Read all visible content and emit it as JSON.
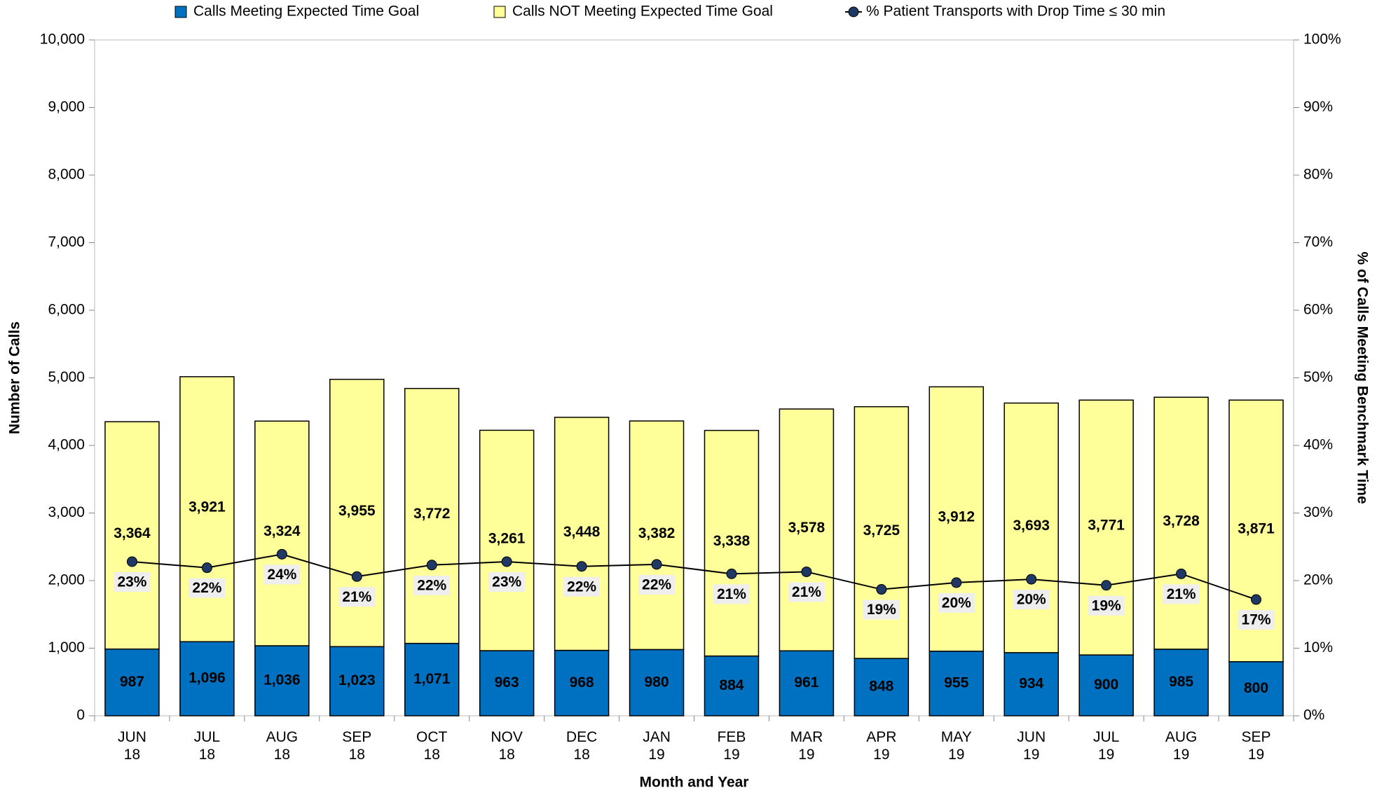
{
  "chart_data": {
    "type": "bar",
    "stacked": true,
    "x_label": "Month and Year",
    "y_label": "Number of Calls",
    "y2_label": "% of Calls Meeting Benchmark Time",
    "categories": [
      "JUN 18",
      "JUL 18",
      "AUG 18",
      "SEP 18",
      "OCT 18",
      "NOV 18",
      "DEC 18",
      "JAN 19",
      "FEB 19",
      "MAR 19",
      "APR 19",
      "MAY 19",
      "JUN 19",
      "JUL 19",
      "AUG 19",
      "SEP 19"
    ],
    "series": [
      {
        "name": "Calls Meeting Expected Time Goal",
        "color": "#0070c0",
        "values": [
          987,
          1096,
          1036,
          1023,
          1071,
          963,
          968,
          980,
          884,
          961,
          848,
          955,
          934,
          900,
          985,
          800
        ],
        "value_labels": [
          "987",
          "1,096",
          "1,036",
          "1,023",
          "1,071",
          "963",
          "968",
          "980",
          "884",
          "961",
          "848",
          "955",
          "934",
          "900",
          "985",
          "800"
        ]
      },
      {
        "name": "Calls NOT Meeting Expected Time Goal",
        "color": "#ffff99",
        "values": [
          3364,
          3921,
          3324,
          3955,
          3772,
          3261,
          3448,
          3382,
          3338,
          3578,
          3725,
          3912,
          3693,
          3771,
          3728,
          3871
        ],
        "value_labels": [
          "3,364",
          "3,921",
          "3,324",
          "3,955",
          "3,772",
          "3,261",
          "3,448",
          "3,382",
          "3,338",
          "3,578",
          "3,725",
          "3,912",
          "3,693",
          "3,771",
          "3,728",
          "3,871"
        ]
      },
      {
        "name": "% Patient Transports with Drop Time ≤ 30 min",
        "type": "line",
        "axis": "y2",
        "color": "#000000",
        "marker_color": "#1f3864",
        "values": [
          22.8,
          21.9,
          23.9,
          20.6,
          22.3,
          22.8,
          22.1,
          22.4,
          21.0,
          21.3,
          18.7,
          19.7,
          20.2,
          19.3,
          21.0,
          17.2
        ],
        "value_labels": [
          "23%",
          "22%",
          "24%",
          "21%",
          "22%",
          "23%",
          "22%",
          "22%",
          "21%",
          "21%",
          "19%",
          "20%",
          "20%",
          "19%",
          "21%",
          "17%"
        ]
      }
    ],
    "ylim": [
      0,
      10000
    ],
    "yticks": [
      {
        "value": 0,
        "label": "0"
      },
      {
        "value": 1000,
        "label": "1,000"
      },
      {
        "value": 2000,
        "label": "2,000"
      },
      {
        "value": 3000,
        "label": "3,000"
      },
      {
        "value": 4000,
        "label": "4,000"
      },
      {
        "value": 5000,
        "label": "5,000"
      },
      {
        "value": 6000,
        "label": "6,000"
      },
      {
        "value": 7000,
        "label": "7,000"
      },
      {
        "value": 8000,
        "label": "8,000"
      },
      {
        "value": 9000,
        "label": "9,000"
      },
      {
        "value": 10000,
        "label": "10,000"
      }
    ],
    "y2lim": [
      0,
      100
    ],
    "y2ticks": [
      {
        "value": 0,
        "label": "0%"
      },
      {
        "value": 10,
        "label": "10%"
      },
      {
        "value": 20,
        "label": "20%"
      },
      {
        "value": 30,
        "label": "30%"
      },
      {
        "value": 40,
        "label": "40%"
      },
      {
        "value": 50,
        "label": "50%"
      },
      {
        "value": 60,
        "label": "60%"
      },
      {
        "value": 70,
        "label": "70%"
      },
      {
        "value": 80,
        "label": "80%"
      },
      {
        "value": 90,
        "label": "90%"
      },
      {
        "value": 100,
        "label": "100%"
      }
    ],
    "grid": false,
    "legend": "top"
  }
}
